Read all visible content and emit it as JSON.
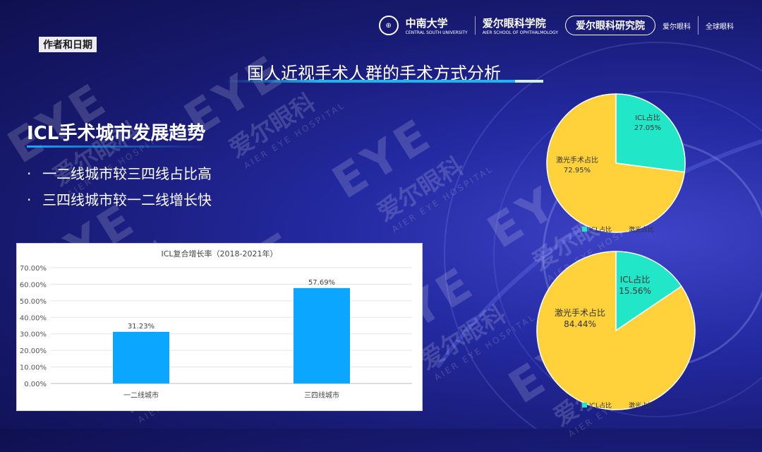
{
  "header": {
    "author": "作者和日期",
    "csu_logo": "中南大学",
    "csu_sub": "CENTRAL SOUTH UNIVERSITY",
    "school_logo": "爱尔眼科学院",
    "school_sub": "AIER SCHOOL OF OPHTHALMOLOGY",
    "pill": "爱尔眼科研究院",
    "small_logo": "爱尔眼科",
    "right_logo": "全球眼科"
  },
  "slide": {
    "title": "国人近视手术人群的手术方式分析",
    "section_title": "ICL手术城市发展趋势",
    "bullets": [
      "一二线城市较三四线占比高",
      "三四线城市较一二线增长快"
    ]
  },
  "watermark": {
    "en": "EYE",
    "cn": "爱尔眼科",
    "sub": "AIER EYE HOSPITAL"
  },
  "colors": {
    "bar": "#0aa6ff",
    "icl": "#21e6c7",
    "laser": "#ffd23c",
    "title_line": "#17b8f0"
  },
  "chart_data": [
    {
      "type": "bar",
      "title": "ICL复合增长率（2018-2021年）",
      "categories": [
        "一二线城市",
        "三四线城市"
      ],
      "values": [
        31.23,
        57.69
      ],
      "value_labels": [
        "31.23%",
        "57.69%"
      ],
      "ylim": [
        0,
        70
      ],
      "yticks": [
        "0.00%",
        "10.00%",
        "20.00%",
        "30.00%",
        "40.00%",
        "50.00%",
        "60.00%",
        "70.00%"
      ],
      "grid": true
    },
    {
      "type": "pie",
      "slices": [
        {
          "label": "ICL占比",
          "value": 27.05,
          "text": "27.05%",
          "color": "#21e6c7"
        },
        {
          "label": "激光手术占比",
          "value": 72.95,
          "text": "72.95%",
          "color": "#ffd23c"
        }
      ],
      "legend": [
        "ICL占比",
        "激光占比"
      ],
      "legend_position": "bottom"
    },
    {
      "type": "pie",
      "slices": [
        {
          "label": "ICL占比",
          "value": 15.56,
          "text": "15.56%",
          "color": "#21e6c7"
        },
        {
          "label": "激光手术占比",
          "value": 84.44,
          "text": "84.44%",
          "color": "#ffd23c"
        }
      ],
      "legend": [
        "ICL占比",
        "激光占比"
      ],
      "legend_position": "bottom"
    }
  ]
}
